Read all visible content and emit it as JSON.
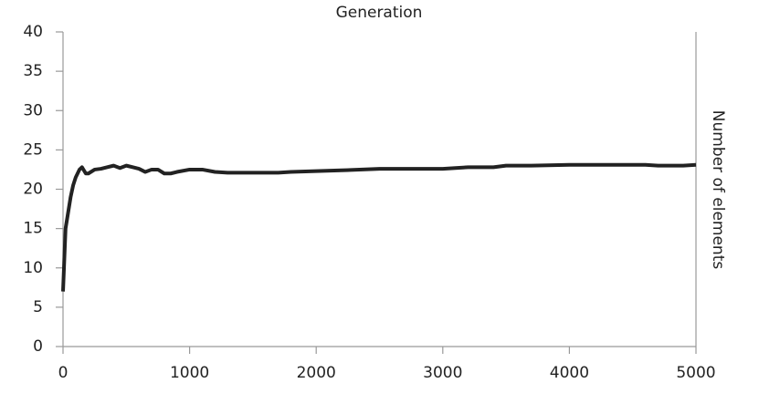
{
  "chart_data": {
    "type": "line",
    "title": "Generation",
    "y_label": "Number of elements",
    "x": [
      0,
      10,
      20,
      40,
      60,
      80,
      100,
      130,
      150,
      180,
      200,
      250,
      300,
      350,
      400,
      450,
      500,
      550,
      600,
      650,
      700,
      750,
      800,
      850,
      900,
      1000,
      1100,
      1200,
      1300,
      1500,
      1700,
      1800,
      2000,
      2200,
      2500,
      3000,
      3100,
      3200,
      3400,
      3500,
      3700,
      4000,
      4300,
      4600,
      4700,
      4900,
      5000
    ],
    "values": [
      7,
      11,
      15,
      17,
      19,
      20.5,
      21.5,
      22.5,
      22.8,
      22,
      22,
      22.5,
      22.6,
      22.8,
      23,
      22.7,
      23,
      22.8,
      22.6,
      22.2,
      22.5,
      22.5,
      22,
      22,
      22.2,
      22.5,
      22.5,
      22.2,
      22.1,
      22.1,
      22.1,
      22.2,
      22.3,
      22.4,
      22.6,
      22.6,
      22.7,
      22.8,
      22.8,
      23,
      23,
      23.1,
      23.1,
      23.1,
      23,
      23,
      23.1
    ],
    "color": "#222222",
    "xlim": [
      0,
      5000
    ],
    "xticks": [
      0,
      1000,
      2000,
      3000,
      4000,
      5000
    ],
    "ylim": [
      0,
      40
    ],
    "yticks": [
      0,
      5,
      10,
      15,
      20,
      25,
      30,
      35,
      40
    ]
  }
}
